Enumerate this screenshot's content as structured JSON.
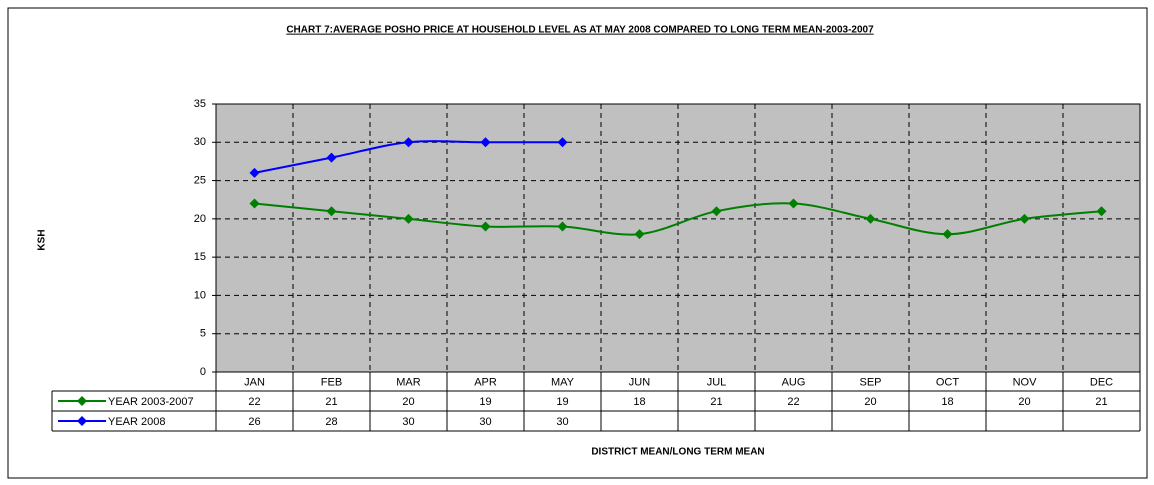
{
  "chart_data": {
    "type": "line",
    "title": "CHART 7:AVERAGE POSHO PRICE AT HOUSEHOLD LEVEL AS AT MAY 2008 COMPARED TO LONG TERM MEAN-2003-2007",
    "y_label": "KSH",
    "x_label": "DISTRICT MEAN/LONG TERM MEAN",
    "categories": [
      "JAN",
      "FEB",
      "MAR",
      "APR",
      "MAY",
      "JUN",
      "JUL",
      "AUG",
      "SEP",
      "OCT",
      "NOV",
      "DEC"
    ],
    "series": [
      {
        "name": "YEAR 2003-2007",
        "color": "#008000",
        "values": [
          22,
          21,
          20,
          19,
          19,
          18,
          21,
          22,
          20,
          18,
          20,
          21
        ]
      },
      {
        "name": "YEAR 2008",
        "color": "#0000ff",
        "values": [
          26,
          28,
          30,
          30,
          30,
          null,
          null,
          null,
          null,
          null,
          null,
          null
        ]
      }
    ],
    "ylim": [
      0,
      35
    ],
    "yticks": [
      0,
      5,
      10,
      15,
      20,
      25,
      30,
      35
    ],
    "grid": true,
    "plot_background": "#c0c0c0"
  }
}
